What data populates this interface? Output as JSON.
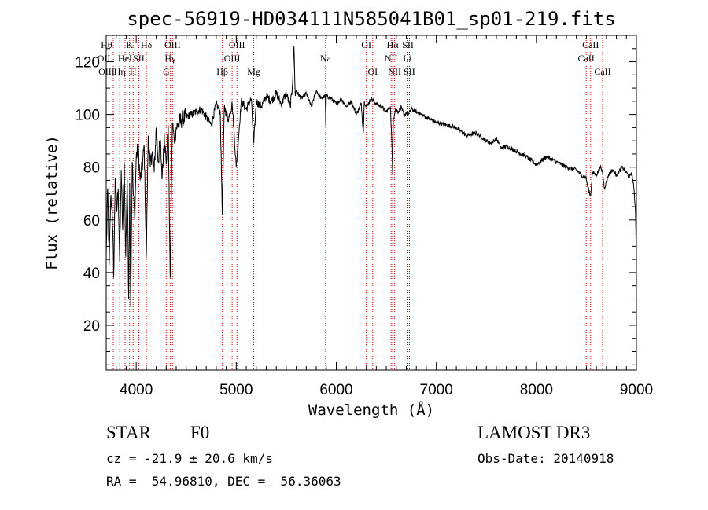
{
  "chart_data": {
    "type": "line",
    "title": "spec-56919-HD034111N585041B01_sp01-219.fits",
    "xlabel": "Wavelength (Å)",
    "ylabel": "Flux (relative)",
    "xlim": [
      3700,
      9000
    ],
    "ylim": [
      3,
      130
    ],
    "xticks": [
      4000,
      5000,
      6000,
      7000,
      8000,
      9000
    ],
    "xtick_labels": [
      "4000",
      "5000",
      "6000",
      "7000",
      "8000",
      "9000"
    ],
    "yticks": [
      20,
      40,
      60,
      80,
      100,
      120
    ],
    "ytick_labels": [
      "20",
      "40",
      "60",
      "80",
      "100",
      "120"
    ],
    "grid": false,
    "line_color": "#000000",
    "marker_color": "#cc0000",
    "series": [
      {
        "name": "flux",
        "x": [
          3700,
          3715,
          3730,
          3745,
          3760,
          3775,
          3790,
          3805,
          3820,
          3835,
          3850,
          3865,
          3880,
          3895,
          3910,
          3925,
          3935,
          3945,
          3960,
          3970,
          3985,
          4000,
          4020,
          4040,
          4060,
          4080,
          4101,
          4120,
          4140,
          4160,
          4180,
          4200,
          4220,
          4240,
          4260,
          4280,
          4300,
          4320,
          4340,
          4361,
          4380,
          4400,
          4450,
          4500,
          4550,
          4600,
          4650,
          4700,
          4750,
          4800,
          4840,
          4861,
          4880,
          4920,
          4960,
          5000,
          5050,
          5100,
          5150,
          5175,
          5200,
          5250,
          5300,
          5350,
          5400,
          5450,
          5500,
          5540,
          5560,
          5577,
          5590,
          5600,
          5650,
          5700,
          5750,
          5800,
          5850,
          5890,
          5895,
          5900,
          5950,
          6000,
          6050,
          6100,
          6150,
          6200,
          6250,
          6270,
          6280,
          6300,
          6350,
          6400,
          6450,
          6500,
          6540,
          6556,
          6563,
          6570,
          6590,
          6620,
          6650,
          6680,
          6700,
          6720,
          6750,
          6800,
          6850,
          6900,
          6950,
          7000,
          7100,
          7200,
          7300,
          7400,
          7500,
          7550,
          7600,
          7650,
          7700,
          7800,
          7900,
          8000,
          8100,
          8200,
          8300,
          8400,
          8450,
          8498,
          8510,
          8542,
          8560,
          8600,
          8640,
          8662,
          8680,
          8720,
          8760,
          8800,
          8860,
          8900,
          8930,
          8950,
          8970,
          8990,
          9000
        ],
        "y": [
          46,
          72,
          43,
          68,
          65,
          38,
          76,
          63,
          72,
          44,
          79,
          56,
          82,
          46,
          76,
          30,
          74,
          27,
          82,
          71,
          60,
          84,
          87,
          75,
          80,
          88,
          46,
          92,
          80,
          86,
          78,
          95,
          82,
          90,
          76,
          93,
          81,
          96,
          38,
          97,
          90,
          95,
          98,
          99,
          100,
          101,
          102,
          99,
          96,
          104,
          101,
          62,
          103,
          98,
          104,
          80,
          105,
          102,
          106,
          89,
          105,
          103,
          107,
          105,
          108,
          104,
          108,
          103,
          110,
          126,
          107,
          109,
          106,
          108,
          103,
          109,
          106,
          107,
          96,
          107,
          106,
          104,
          106,
          103,
          105,
          100,
          104,
          93,
          105,
          103,
          106,
          104,
          103,
          101,
          103,
          89,
          77,
          98,
          102,
          101,
          103,
          99,
          101,
          100,
          102,
          101,
          100,
          99,
          98,
          97,
          96,
          95,
          92,
          93,
          90,
          89,
          91,
          87,
          88,
          86,
          84,
          81,
          84,
          82,
          80,
          79,
          77,
          76,
          73,
          69,
          78,
          77,
          80,
          78,
          72,
          77,
          79,
          77,
          80,
          78,
          76,
          78,
          74,
          64,
          45
        ]
      }
    ],
    "line_markers": [
      {
        "w": 3771,
        "label": "OII",
        "row": 1,
        "offset": -12
      },
      {
        "w": 3798,
        "label": "Hθ",
        "row": 0,
        "offset": -12
      },
      {
        "w": 3798,
        "label": "OIII",
        "row": 2,
        "offset": -12
      },
      {
        "w": 3835,
        "label": "Hη",
        "row": 2,
        "offset": 0
      },
      {
        "w": 3889,
        "label": "HeI",
        "row": 1,
        "offset": 0
      },
      {
        "w": 3934,
        "label": "K",
        "row": 0,
        "offset": 0
      },
      {
        "w": 3969,
        "label": "H",
        "row": 2,
        "offset": 0
      },
      {
        "w": 4026,
        "label": "SII",
        "row": 1,
        "offset": 0
      },
      {
        "w": 4102,
        "label": "Hδ",
        "row": 0,
        "offset": 0
      },
      {
        "w": 4300,
        "label": "G",
        "row": 2,
        "offset": 0
      },
      {
        "w": 4340,
        "label": "Hγ",
        "row": 1,
        "offset": 0
      },
      {
        "w": 4363,
        "label": "OIII",
        "row": 0,
        "offset": 0
      },
      {
        "w": 4861,
        "label": "Hβ",
        "row": 2,
        "offset": 0
      },
      {
        "w": 4959,
        "label": "OIII",
        "row": 1,
        "offset": 0
      },
      {
        "w": 5007,
        "label": "OIII",
        "row": 0,
        "offset": 0
      },
      {
        "w": 5175,
        "label": "Mg",
        "row": 2,
        "offset": 0
      },
      {
        "w": 5893,
        "label": "Na",
        "row": 1,
        "offset": 0
      },
      {
        "w": 6300,
        "label": "OI",
        "row": 0,
        "offset": 0
      },
      {
        "w": 6364,
        "label": "OI",
        "row": 2,
        "offset": 0
      },
      {
        "w": 6548,
        "label": "NII",
        "row": 1,
        "offset": 0
      },
      {
        "w": 6563,
        "label": "Hα",
        "row": 0,
        "offset": 0
      },
      {
        "w": 6583,
        "label": "NII",
        "row": 2,
        "offset": 0
      },
      {
        "w": 6708,
        "label": "Li",
        "row": 1,
        "offset": 0
      },
      {
        "w": 6716,
        "label": "SII",
        "row": 0,
        "offset": 0
      },
      {
        "w": 6731,
        "label": "SII",
        "row": 2,
        "offset": 0
      },
      {
        "w": 8498,
        "label": "CaII",
        "row": 1,
        "offset": 0
      },
      {
        "w": 8542,
        "label": "CaII",
        "row": 0,
        "offset": 0
      },
      {
        "w": 8662,
        "label": "CaII",
        "row": 2,
        "offset": 0
      }
    ]
  },
  "footer": {
    "object_class": "STAR",
    "subclass": "F0",
    "survey": "LAMOST DR3",
    "redshift": "cz = -21.9 ± 20.6 km/s",
    "obs_date": "Obs-Date: 20140918",
    "coords": "RA =  54.96810, DEC =  56.36063"
  }
}
